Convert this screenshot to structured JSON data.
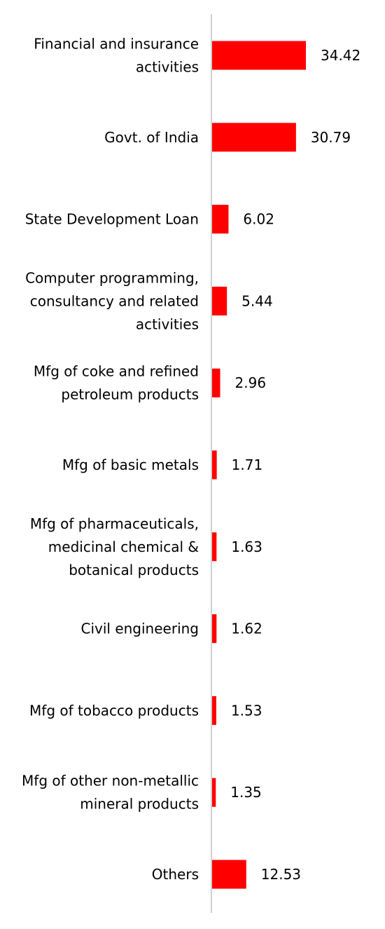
{
  "chart_data": {
    "type": "bar",
    "orientation": "horizontal",
    "title": "",
    "xlabel": "",
    "ylabel": "",
    "grid": false,
    "legend": "none",
    "bar_color": "#ff0000",
    "axis_color": "#d0d0d0",
    "xlim": [
      0,
      40
    ],
    "categories": [
      [
        "Financial and insurance",
        "activities"
      ],
      [
        "Govt. of India"
      ],
      [
        "State Development Loan"
      ],
      [
        "Computer programming,",
        "consultancy and related",
        "activities"
      ],
      [
        "Mfg of coke and refined",
        "petroleum products"
      ],
      [
        "Mfg of basic metals"
      ],
      [
        "Mfg of pharmaceuticals,",
        "medicinal chemical &",
        "botanical products"
      ],
      [
        "Civil engineering"
      ],
      [
        "Mfg of tobacco products"
      ],
      [
        "Mfg of other non-metallic",
        "mineral products"
      ],
      [
        "Others"
      ]
    ],
    "values": [
      34.42,
      30.79,
      6.02,
      5.44,
      2.96,
      1.71,
      1.63,
      1.62,
      1.53,
      1.35,
      12.53
    ],
    "value_labels": [
      "34.42",
      "30.79",
      "6.02",
      "5.44",
      "2.96",
      "1.71",
      "1.63",
      "1.62",
      "1.53",
      "1.35",
      "12.53"
    ]
  }
}
